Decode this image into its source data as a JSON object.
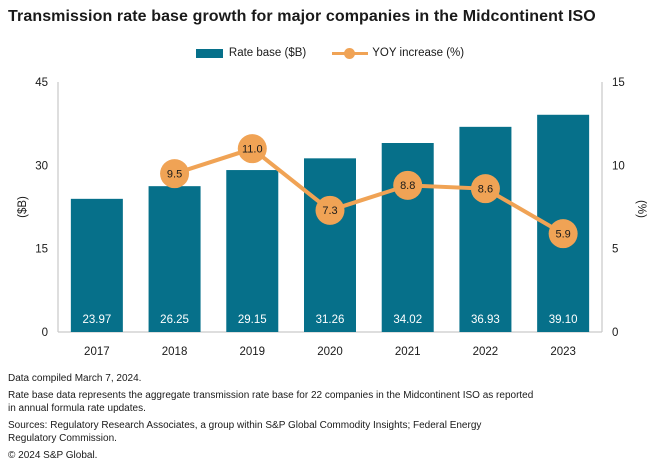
{
  "chart_data": {
    "type": "bar+line",
    "title": "Transmission rate base growth for major companies in the Midcontinent ISO",
    "categories": [
      "2017",
      "2018",
      "2019",
      "2020",
      "2021",
      "2022",
      "2023"
    ],
    "series": [
      {
        "name": "Rate base ($B)",
        "type": "bar",
        "axis": "left",
        "color": "#06708a",
        "values": [
          23.97,
          26.25,
          29.15,
          31.26,
          34.02,
          36.93,
          39.1
        ],
        "labels": [
          "23.97",
          "26.25",
          "29.15",
          "31.26",
          "34.02",
          "36.93",
          "39.10"
        ]
      },
      {
        "name": "YOY increase (%)",
        "type": "line",
        "axis": "right",
        "color": "#f0a355",
        "values": [
          null,
          9.5,
          11.0,
          7.3,
          8.8,
          8.6,
          5.9
        ],
        "labels": [
          null,
          "9.5",
          "11.0",
          "7.3",
          "8.8",
          "8.6",
          "5.9"
        ]
      }
    ],
    "left_axis": {
      "label": "($B)",
      "range": [
        0,
        45
      ],
      "ticks": [
        0,
        15,
        30,
        45
      ]
    },
    "right_axis": {
      "label": "(%)",
      "range": [
        0,
        15
      ],
      "ticks": [
        0,
        5,
        10,
        15
      ]
    },
    "legend_position": "top-center",
    "grid": false,
    "colors": {
      "bar": "#06708a",
      "line": "#f0a355",
      "axis_line": "#c9c9c9",
      "text": "#1a1a1a",
      "bar_label": "#ffffff",
      "marker_label": "#1a1a1a"
    }
  },
  "footer": {
    "compiled": "Data compiled March 7, 2024.",
    "note_l1": "Rate base data represents the aggregate transmission rate base for 22 companies in the Midcontinent ISO as reported",
    "note_l2": "in annual formula rate updates.",
    "sources_l1": "Sources: Regulatory Research Associates, a group within S&P Global Commodity Insights; Federal Energy",
    "sources_l2": "Regulatory Commission.",
    "copyright": "© 2024 S&P Global."
  }
}
